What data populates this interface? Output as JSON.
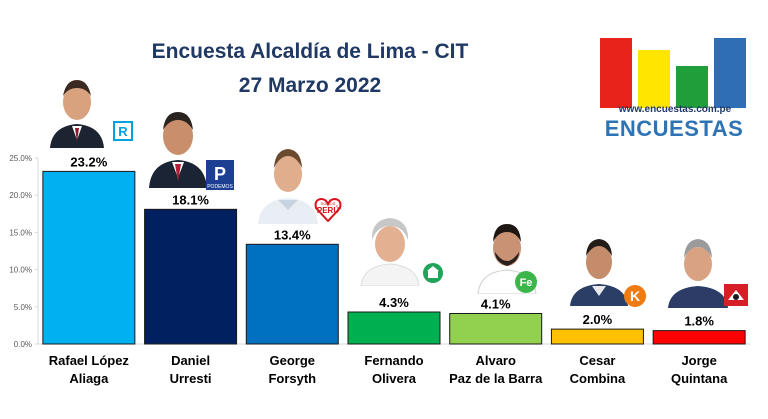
{
  "header": {
    "title_line1": "Encuesta Alcaldía de Lima - CIT",
    "title_line2": "27 Marzo 2022"
  },
  "logo": {
    "url": "www.encuestas.com.pe",
    "word": "ENCUESTAS",
    "bar_colors": [
      "#e8231b",
      "#ffe500",
      "#1f9e3a",
      "#2f6eb5"
    ]
  },
  "party_logos": {
    "renovacion": "R",
    "podemos": "P",
    "podemos_sub": "PODEMOS",
    "somos": "PERÚ",
    "somos_sub": "SOMOS",
    "fe": "Fe",
    "k": "K"
  },
  "chart_data": {
    "type": "bar",
    "title": "Encuesta Alcaldía de Lima - CIT",
    "subtitle": "27 Marzo 2022",
    "categories": [
      [
        "Rafael López",
        "Aliaga"
      ],
      [
        "Daniel",
        "Urresti"
      ],
      [
        "George",
        "Forsyth"
      ],
      [
        "Fernando",
        "Olivera"
      ],
      [
        "Alvaro",
        "Paz de la Barra"
      ],
      [
        "Cesar",
        "Combina"
      ],
      [
        "Jorge",
        "Quintana"
      ]
    ],
    "values": [
      23.2,
      18.1,
      13.4,
      4.3,
      4.1,
      2.0,
      1.8
    ],
    "value_labels": [
      "23.2%",
      "18.1%",
      "13.4%",
      "4.3%",
      "4.1%",
      "2.0%",
      "1.8%"
    ],
    "colors": [
      "#00b0f0",
      "#002060",
      "#0070c0",
      "#00b050",
      "#92d050",
      "#ffc000",
      "#ff0000"
    ],
    "ylim": [
      0,
      25
    ],
    "yticks": [
      0,
      5,
      10,
      15,
      20,
      25
    ],
    "ytick_labels": [
      "0.0%",
      "5.0%",
      "10.0%",
      "15.0%",
      "20.0%",
      "25.0%"
    ],
    "grid": false,
    "legend": "none"
  }
}
